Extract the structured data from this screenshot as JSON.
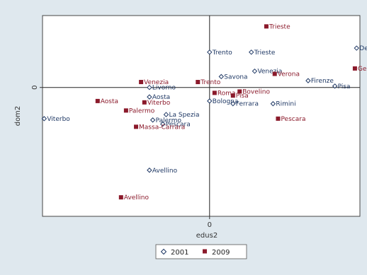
{
  "chart_data": {
    "type": "scatter",
    "xlabel": "edus2",
    "ylabel": "dom2",
    "x_tick_labels": [
      "0"
    ],
    "y_tick_labels": [
      "0"
    ],
    "xlim": [
      -1.0,
      0.9
    ],
    "ylim": [
      -0.95,
      0.53
    ],
    "grid": false,
    "reference_lines": {
      "x": 0,
      "y": 0
    },
    "legend_position": "bottom-center",
    "colors": {
      "2001": "#1f3864",
      "2009": "#8b1a2b"
    },
    "series": [
      {
        "name": "2001",
        "marker": "hollow-diamond",
        "points": [
          {
            "label": "Trento",
            "x": 0.0,
            "y": 0.26
          },
          {
            "label": "Trieste",
            "x": 0.25,
            "y": 0.26
          },
          {
            "label": "De",
            "x": 0.88,
            "y": 0.29
          },
          {
            "label": "Venezia",
            "x": 0.27,
            "y": 0.12
          },
          {
            "label": "Savona",
            "x": 0.07,
            "y": 0.08
          },
          {
            "label": "Firenze",
            "x": 0.59,
            "y": 0.05
          },
          {
            "label": "Pisa",
            "x": 0.75,
            "y": 0.01
          },
          {
            "label": "Livorno",
            "x": -0.36,
            "y": 0.0
          },
          {
            "label": "Aosta",
            "x": -0.36,
            "y": -0.07
          },
          {
            "label": "Bologna",
            "x": 0.0,
            "y": -0.1
          },
          {
            "label": "Ferrara",
            "x": 0.14,
            "y": -0.12
          },
          {
            "label": "Rimini",
            "x": 0.38,
            "y": -0.12
          },
          {
            "label": "La Spezia",
            "x": -0.26,
            "y": -0.2
          },
          {
            "label": "Palermo",
            "x": -0.34,
            "y": -0.24
          },
          {
            "label": "Pescara",
            "x": -0.28,
            "y": -0.27
          },
          {
            "label": "Viterbo",
            "x": -0.99,
            "y": -0.23
          },
          {
            "label": "Avellino",
            "x": -0.36,
            "y": -0.61
          }
        ]
      },
      {
        "name": "2009",
        "marker": "filled-square",
        "points": [
          {
            "label": "Trieste",
            "x": 0.34,
            "y": 0.45
          },
          {
            "label": "Gen",
            "x": 0.87,
            "y": 0.14
          },
          {
            "label": "Verona",
            "x": 0.39,
            "y": 0.1
          },
          {
            "label": "Venezia",
            "x": -0.41,
            "y": 0.04
          },
          {
            "label": "Trento",
            "x": -0.07,
            "y": 0.04
          },
          {
            "label": "Bovelino",
            "x": 0.18,
            "y": -0.03
          },
          {
            "label": "Roma",
            "x": 0.03,
            "y": -0.04
          },
          {
            "label": "Pisa",
            "x": 0.14,
            "y": -0.06
          },
          {
            "label": "Aosta",
            "x": -0.67,
            "y": -0.1
          },
          {
            "label": "Viterbo",
            "x": -0.39,
            "y": -0.11
          },
          {
            "label": "Palermo",
            "x": -0.5,
            "y": -0.17
          },
          {
            "label": "Massa-Carrara",
            "x": -0.44,
            "y": -0.29
          },
          {
            "label": "Pescara",
            "x": 0.41,
            "y": -0.23
          },
          {
            "label": "Avellino",
            "x": -0.53,
            "y": -0.81
          }
        ]
      }
    ]
  }
}
